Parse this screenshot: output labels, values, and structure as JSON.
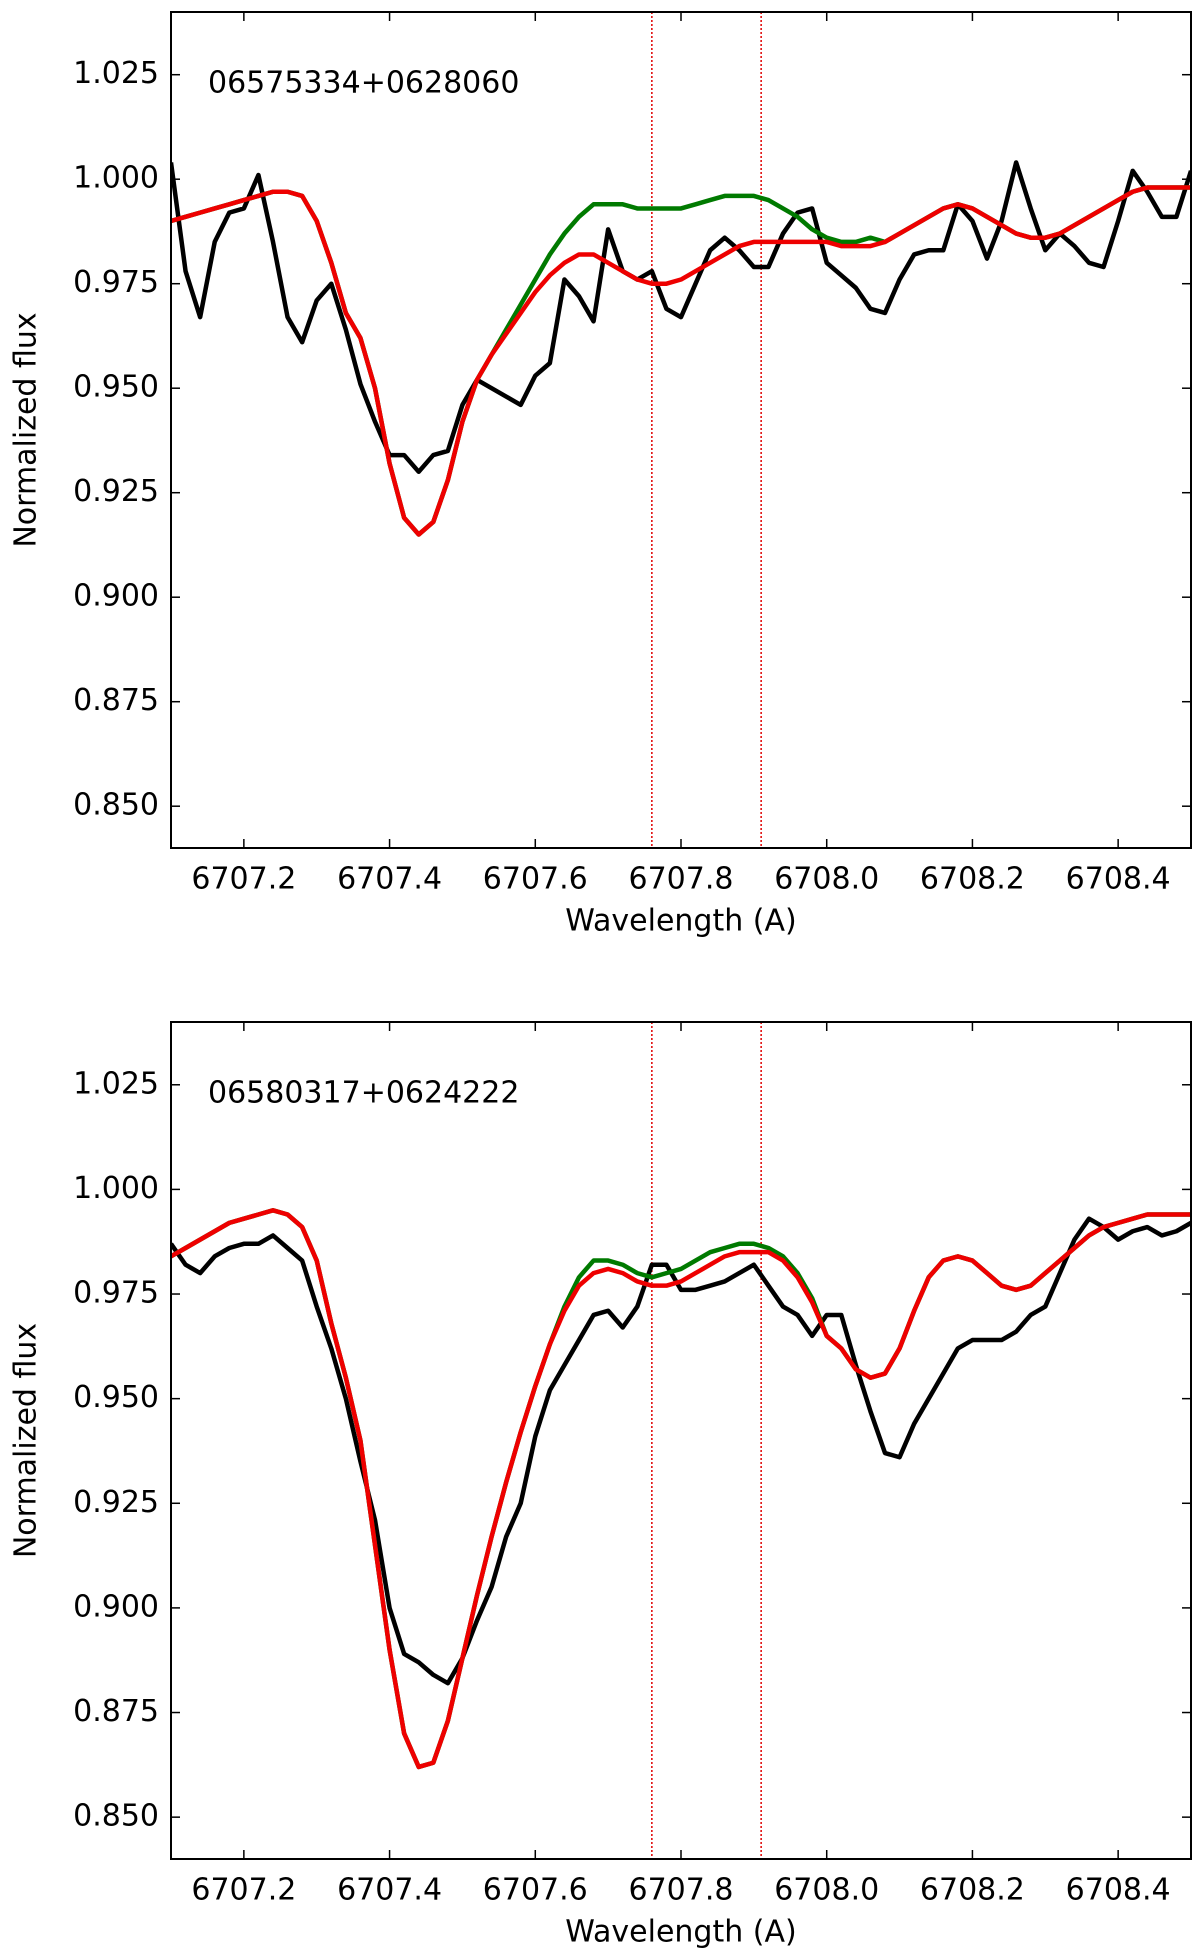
{
  "chart_data": [
    {
      "type": "line",
      "annotation": "06575334+0628060",
      "xlabel": "Wavelength (A)",
      "ylabel": "Normalized flux",
      "xlim": [
        6707.1,
        6708.5
      ],
      "ylim": [
        0.84,
        1.04
      ],
      "xticks": [
        6707.2,
        6707.4,
        6707.6,
        6707.8,
        {
          "value": 6708,
          "label": "6708.0"
        },
        6708.2,
        6708.4
      ],
      "yticks": [
        {
          "value": 0.85,
          "label": "0.850"
        },
        0.875,
        {
          "value": 0.9,
          "label": "0.900"
        },
        0.925,
        {
          "value": 0.95,
          "label": "0.950"
        },
        0.975,
        {
          "value": 1,
          "label": "1.000"
        },
        1.025
      ],
      "vlines": [
        6707.76,
        6707.91
      ],
      "vline_color": "#e00000",
      "x": [
        6707.1,
        6707.12,
        6707.14,
        6707.16,
        6707.18,
        6707.2,
        6707.22,
        6707.24,
        6707.26,
        6707.28,
        6707.3,
        6707.32,
        6707.34,
        6707.36,
        6707.38,
        6707.4,
        6707.42,
        6707.44,
        6707.46,
        6707.48,
        6707.5,
        6707.52,
        6707.54,
        6707.56,
        6707.58,
        6707.6,
        6707.62,
        6707.64,
        6707.66,
        6707.68,
        6707.7,
        6707.72,
        6707.74,
        6707.76,
        6707.78,
        6707.8,
        6707.82,
        6707.84,
        6707.86,
        6707.88,
        6707.9,
        6707.92,
        6707.94,
        6707.96,
        6707.98,
        6708,
        6708.02,
        6708.04,
        6708.06,
        6708.08,
        6708.1,
        6708.12,
        6708.14,
        6708.16,
        6708.18,
        6708.2,
        6708.22,
        6708.24,
        6708.26,
        6708.28,
        6708.3,
        6708.32,
        6708.34,
        6708.36,
        6708.38,
        6708.4,
        6708.42,
        6708.44,
        6708.46,
        6708.48,
        6708.5
      ],
      "series": [
        {
          "color": "#000000",
          "values": [
            1.004,
            0.978,
            0.967,
            0.985,
            0.992,
            0.993,
            1.001,
            0.985,
            0.967,
            0.961,
            0.971,
            0.975,
            0.964,
            0.951,
            0.942,
            0.934,
            0.934,
            0.93,
            0.934,
            0.935,
            0.946,
            0.952,
            0.95,
            0.948,
            0.946,
            0.953,
            0.956,
            0.976,
            0.972,
            0.966,
            0.988,
            0.978,
            0.976,
            0.978,
            0.969,
            0.967,
            0.975,
            0.983,
            0.986,
            0.983,
            0.979,
            0.979,
            0.987,
            0.992,
            0.993,
            0.98,
            0.977,
            0.974,
            0.969,
            0.968,
            0.976,
            0.982,
            0.983,
            0.983,
            0.994,
            0.99,
            0.981,
            0.99,
            1.004,
            0.993,
            0.983,
            0.987,
            0.984,
            0.98,
            0.979,
            0.99,
            1.002,
            0.997,
            0.991,
            0.991,
            1.002
          ]
        },
        {
          "color": "#007a00",
          "values": [
            0.99,
            0.991,
            0.992,
            0.993,
            0.994,
            0.995,
            0.996,
            0.997,
            0.997,
            0.996,
            0.99,
            0.98,
            0.968,
            0.962,
            0.95,
            0.932,
            0.919,
            0.915,
            0.918,
            0.928,
            0.942,
            0.952,
            0.958,
            0.964,
            0.97,
            0.976,
            0.982,
            0.987,
            0.991,
            0.994,
            0.994,
            0.994,
            0.993,
            0.993,
            0.993,
            0.993,
            0.994,
            0.995,
            0.996,
            0.996,
            0.996,
            0.995,
            0.993,
            0.991,
            0.988,
            0.986,
            0.985,
            0.985,
            0.986,
            0.985,
            0.987,
            0.989,
            0.991,
            0.993,
            0.994,
            0.993,
            0.991,
            0.989,
            0.987,
            0.986,
            0.986,
            0.987,
            0.989,
            0.991,
            0.993,
            0.995,
            0.997,
            0.998,
            0.998,
            0.998,
            0.998
          ]
        },
        {
          "color": "#ee0000",
          "values": [
            0.99,
            0.991,
            0.992,
            0.993,
            0.994,
            0.995,
            0.996,
            0.997,
            0.997,
            0.996,
            0.99,
            0.98,
            0.968,
            0.962,
            0.95,
            0.932,
            0.919,
            0.915,
            0.918,
            0.928,
            0.942,
            0.952,
            0.958,
            0.963,
            0.968,
            0.973,
            0.977,
            0.98,
            0.982,
            0.982,
            0.98,
            0.978,
            0.976,
            0.975,
            0.975,
            0.976,
            0.978,
            0.98,
            0.982,
            0.984,
            0.985,
            0.985,
            0.985,
            0.985,
            0.985,
            0.985,
            0.984,
            0.984,
            0.984,
            0.985,
            0.987,
            0.989,
            0.991,
            0.993,
            0.994,
            0.993,
            0.991,
            0.989,
            0.987,
            0.986,
            0.986,
            0.987,
            0.989,
            0.991,
            0.993,
            0.995,
            0.997,
            0.998,
            0.998,
            0.998,
            0.998
          ]
        }
      ]
    },
    {
      "type": "line",
      "annotation": "06580317+0624222",
      "xlabel": "Wavelength (A)",
      "ylabel": "Normalized flux",
      "xlim": [
        6707.1,
        6708.5
      ],
      "ylim": [
        0.84,
        1.04
      ],
      "xticks": [
        6707.2,
        6707.4,
        6707.6,
        6707.8,
        {
          "value": 6708,
          "label": "6708.0"
        },
        6708.2,
        6708.4
      ],
      "yticks": [
        {
          "value": 0.85,
          "label": "0.850"
        },
        0.875,
        {
          "value": 0.9,
          "label": "0.900"
        },
        0.925,
        {
          "value": 0.95,
          "label": "0.950"
        },
        0.975,
        {
          "value": 1,
          "label": "1.000"
        },
        1.025
      ],
      "vlines": [
        6707.76,
        6707.91
      ],
      "vline_color": "#e00000",
      "x": [
        6707.1,
        6707.12,
        6707.14,
        6707.16,
        6707.18,
        6707.2,
        6707.22,
        6707.24,
        6707.26,
        6707.28,
        6707.3,
        6707.32,
        6707.34,
        6707.36,
        6707.38,
        6707.4,
        6707.42,
        6707.44,
        6707.46,
        6707.48,
        6707.5,
        6707.52,
        6707.54,
        6707.56,
        6707.58,
        6707.6,
        6707.62,
        6707.64,
        6707.66,
        6707.68,
        6707.7,
        6707.72,
        6707.74,
        6707.76,
        6707.78,
        6707.8,
        6707.82,
        6707.84,
        6707.86,
        6707.88,
        6707.9,
        6707.92,
        6707.94,
        6707.96,
        6707.98,
        6708,
        6708.02,
        6708.04,
        6708.06,
        6708.08,
        6708.1,
        6708.12,
        6708.14,
        6708.16,
        6708.18,
        6708.2,
        6708.22,
        6708.24,
        6708.26,
        6708.28,
        6708.3,
        6708.32,
        6708.34,
        6708.36,
        6708.38,
        6708.4,
        6708.42,
        6708.44,
        6708.46,
        6708.48,
        6708.5
      ],
      "series": [
        {
          "color": "#000000",
          "values": [
            0.987,
            0.982,
            0.98,
            0.984,
            0.986,
            0.987,
            0.987,
            0.989,
            0.986,
            0.983,
            0.972,
            0.962,
            0.95,
            0.935,
            0.921,
            0.9,
            0.889,
            0.887,
            0.884,
            0.882,
            0.888,
            0.897,
            0.905,
            0.917,
            0.925,
            0.941,
            0.952,
            0.958,
            0.964,
            0.97,
            0.971,
            0.967,
            0.972,
            0.982,
            0.982,
            0.976,
            0.976,
            0.977,
            0.978,
            0.98,
            0.982,
            0.977,
            0.972,
            0.97,
            0.965,
            0.97,
            0.97,
            0.958,
            0.947,
            0.937,
            0.936,
            0.944,
            0.95,
            0.956,
            0.962,
            0.964,
            0.964,
            0.964,
            0.966,
            0.97,
            0.972,
            0.98,
            0.988,
            0.993,
            0.991,
            0.988,
            0.99,
            0.991,
            0.989,
            0.99,
            0.992
          ]
        },
        {
          "color": "#007a00",
          "values": [
            0.984,
            0.986,
            0.988,
            0.99,
            0.992,
            0.993,
            0.994,
            0.995,
            0.994,
            0.991,
            0.983,
            0.968,
            0.955,
            0.94,
            0.915,
            0.89,
            0.87,
            0.862,
            0.863,
            0.873,
            0.888,
            0.903,
            0.917,
            0.93,
            0.942,
            0.953,
            0.963,
            0.972,
            0.979,
            0.983,
            0.983,
            0.982,
            0.98,
            0.979,
            0.98,
            0.981,
            0.983,
            0.985,
            0.986,
            0.987,
            0.987,
            0.986,
            0.984,
            0.98,
            0.974,
            0.965,
            0.962,
            0.957,
            0.955,
            0.956,
            0.962,
            0.971,
            0.979,
            0.983,
            0.984,
            0.983,
            0.98,
            0.977,
            0.976,
            0.977,
            0.98,
            0.983,
            0.986,
            0.989,
            0.991,
            0.992,
            0.993,
            0.994,
            0.994,
            0.994,
            0.994
          ]
        },
        {
          "color": "#ee0000",
          "values": [
            0.984,
            0.986,
            0.988,
            0.99,
            0.992,
            0.993,
            0.994,
            0.995,
            0.994,
            0.991,
            0.983,
            0.968,
            0.955,
            0.94,
            0.915,
            0.89,
            0.87,
            0.862,
            0.863,
            0.873,
            0.888,
            0.903,
            0.917,
            0.93,
            0.942,
            0.953,
            0.963,
            0.971,
            0.977,
            0.98,
            0.981,
            0.98,
            0.978,
            0.977,
            0.977,
            0.978,
            0.98,
            0.982,
            0.984,
            0.985,
            0.985,
            0.985,
            0.983,
            0.979,
            0.973,
            0.965,
            0.962,
            0.957,
            0.955,
            0.956,
            0.962,
            0.971,
            0.979,
            0.983,
            0.984,
            0.983,
            0.98,
            0.977,
            0.976,
            0.977,
            0.98,
            0.983,
            0.986,
            0.989,
            0.991,
            0.992,
            0.993,
            0.994,
            0.994,
            0.994,
            0.994
          ]
        }
      ]
    }
  ]
}
